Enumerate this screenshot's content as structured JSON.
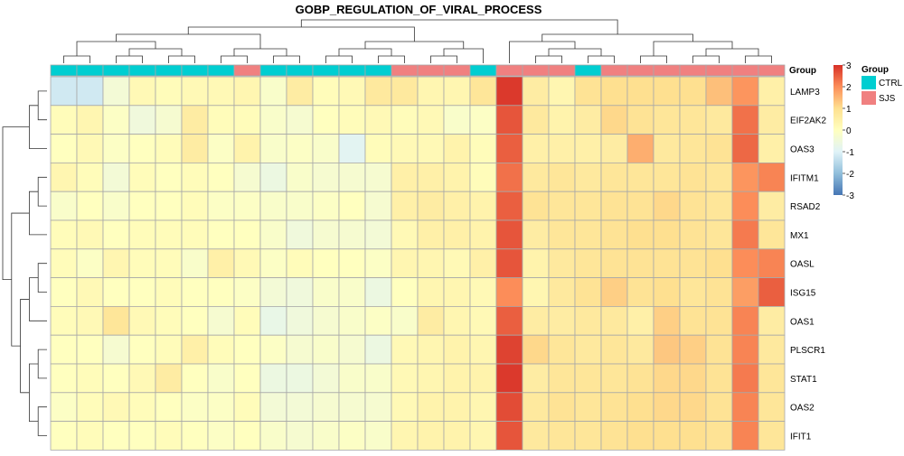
{
  "chart_data": {
    "type": "heatmap",
    "title": "GOBP_REGULATION_OF_VIRAL_PROCESS",
    "rows": [
      "LAMP3",
      "EIF2AK2",
      "OAS3",
      "IFITM1",
      "RSAD2",
      "MX1",
      "OASL",
      "ISG15",
      "OAS1",
      "PLSCR1",
      "STAT1",
      "OAS2",
      "IFIT1"
    ],
    "column_groups": [
      "CTRL",
      "CTRL",
      "CTRL",
      "CTRL",
      "CTRL",
      "CTRL",
      "CTRL",
      "SJS",
      "CTRL",
      "CTRL",
      "CTRL",
      "CTRL",
      "CTRL",
      "SJS",
      "SJS",
      "SJS",
      "CTRL",
      "SJS",
      "SJS",
      "SJS",
      "CTRL",
      "SJS",
      "SJS",
      "SJS",
      "SJS",
      "SJS",
      "SJS",
      "SJS"
    ],
    "values": [
      [
        -1.2,
        -1.2,
        -0.4,
        0.2,
        0.1,
        0.2,
        0.2,
        0.3,
        -0.2,
        0.6,
        0.1,
        0.2,
        0.7,
        0.7,
        0.3,
        0.3,
        0.8,
        2.9,
        0.6,
        0.3,
        0.9,
        1.0,
        1.0,
        1.0,
        1.0,
        1.4,
        1.9,
        0.5
      ],
      [
        0.1,
        0.3,
        -0.1,
        -0.5,
        -0.3,
        0.6,
        0.1,
        0.1,
        -0.2,
        -0.3,
        0.0,
        0.1,
        0.2,
        0.1,
        0.2,
        -0.2,
        -0.1,
        2.6,
        0.7,
        0.4,
        0.6,
        1.1,
        0.9,
        0.8,
        0.8,
        0.7,
        2.3,
        0.6
      ],
      [
        0.0,
        0.2,
        -0.1,
        0.0,
        0.1,
        0.6,
        -0.1,
        0.4,
        -0.2,
        -0.1,
        -0.2,
        -0.9,
        0.1,
        0.2,
        0.2,
        0.4,
        0.1,
        2.5,
        0.5,
        0.5,
        0.5,
        0.6,
        1.6,
        0.7,
        0.8,
        0.9,
        2.4,
        0.5
      ],
      [
        0.3,
        0.1,
        -0.4,
        0.1,
        0.0,
        0.1,
        0.0,
        -0.3,
        -0.6,
        -0.2,
        -0.3,
        -0.3,
        -0.3,
        0.5,
        0.5,
        0.4,
        0.1,
        2.3,
        0.7,
        0.8,
        0.7,
        0.8,
        0.8,
        0.8,
        0.9,
        0.8,
        1.9,
        2.1
      ],
      [
        -0.2,
        0.0,
        -0.2,
        0.0,
        0.0,
        0.1,
        -0.1,
        -0.1,
        -0.2,
        -0.2,
        -0.1,
        0.0,
        -0.3,
        0.5,
        0.6,
        0.5,
        0.4,
        2.5,
        0.9,
        0.8,
        0.8,
        0.9,
        0.9,
        1.1,
        0.9,
        0.8,
        2.0,
        0.6
      ],
      [
        0.1,
        0.2,
        0.0,
        0.1,
        0.1,
        0.1,
        0.0,
        0.0,
        -0.2,
        -0.5,
        -0.3,
        -0.3,
        -0.4,
        0.2,
        0.5,
        0.5,
        0.4,
        2.6,
        0.6,
        0.8,
        0.8,
        0.9,
        1.0,
        1.0,
        0.9,
        0.8,
        2.2,
        0.8
      ],
      [
        0.1,
        -0.1,
        0.3,
        0.1,
        0.1,
        -0.2,
        0.5,
        0.2,
        -0.1,
        0.1,
        0.0,
        0.0,
        -0.1,
        0.3,
        0.3,
        0.2,
        0.5,
        2.6,
        0.4,
        0.7,
        0.8,
        0.9,
        0.9,
        0.9,
        0.9,
        1.0,
        2.0,
        2.1
      ],
      [
        0.0,
        0.2,
        0.0,
        0.0,
        0.1,
        0.0,
        0.0,
        -0.1,
        -0.4,
        -0.5,
        -0.2,
        -0.2,
        -0.6,
        0.0,
        0.3,
        0.3,
        0.2,
        2.0,
        0.3,
        0.7,
        0.9,
        1.2,
        0.9,
        1.0,
        0.8,
        0.9,
        1.8,
        2.5
      ],
      [
        0.1,
        0.2,
        0.8,
        0.2,
        0.1,
        0.0,
        -0.3,
        0.1,
        -0.7,
        -0.5,
        -0.3,
        -0.2,
        -0.1,
        -0.2,
        0.6,
        0.3,
        0.2,
        2.5,
        0.6,
        0.6,
        0.7,
        0.7,
        0.5,
        1.2,
        0.9,
        0.9,
        2.1,
        0.6
      ],
      [
        0.0,
        0.0,
        -0.3,
        0.0,
        0.1,
        0.5,
        0.1,
        0.0,
        -0.1,
        -0.3,
        -0.2,
        -0.3,
        -0.6,
        0.2,
        0.3,
        0.4,
        0.3,
        2.8,
        1.1,
        0.8,
        0.7,
        0.8,
        0.7,
        1.3,
        1.2,
        0.9,
        2.1,
        0.7
      ],
      [
        0.0,
        0.1,
        0.0,
        0.2,
        0.6,
        0.0,
        -0.2,
        0.0,
        -0.6,
        -0.6,
        -0.4,
        -0.2,
        -0.2,
        0.2,
        0.3,
        0.4,
        0.4,
        2.9,
        0.6,
        0.8,
        0.8,
        0.8,
        0.9,
        1.1,
        1.1,
        0.9,
        2.2,
        0.8
      ],
      [
        -0.1,
        0.1,
        0.2,
        0.1,
        0.0,
        -0.1,
        -0.1,
        0.1,
        -0.4,
        -0.4,
        -0.3,
        -0.3,
        -0.3,
        0.2,
        0.4,
        0.4,
        0.3,
        2.7,
        0.7,
        0.9,
        0.8,
        0.9,
        1.0,
        1.1,
        1.1,
        0.9,
        2.1,
        0.8
      ],
      [
        0.0,
        0.1,
        0.0,
        0.0,
        0.1,
        0.0,
        -0.1,
        0.0,
        -0.2,
        -0.3,
        -0.2,
        -0.1,
        -0.2,
        0.3,
        0.4,
        0.4,
        0.3,
        2.6,
        0.7,
        0.8,
        0.8,
        0.9,
        1.0,
        1.0,
        1.0,
        0.9,
        2.1,
        0.8
      ]
    ],
    "color_scale": {
      "min": -3,
      "max": 3,
      "ticks": [
        "3",
        "2",
        "1",
        "0",
        "-1",
        "-2",
        "-3"
      ],
      "colors": [
        "#4575b4",
        "#91bfdb",
        "#e0f3f8",
        "#ffffbf",
        "#fee090",
        "#fc8d59",
        "#d73027"
      ]
    },
    "annotation": {
      "label": "Group",
      "legend_title": "Group",
      "levels": [
        {
          "name": "CTRL",
          "color": "#00ced1"
        },
        {
          "name": "SJS",
          "color": "#f08080"
        }
      ]
    }
  }
}
